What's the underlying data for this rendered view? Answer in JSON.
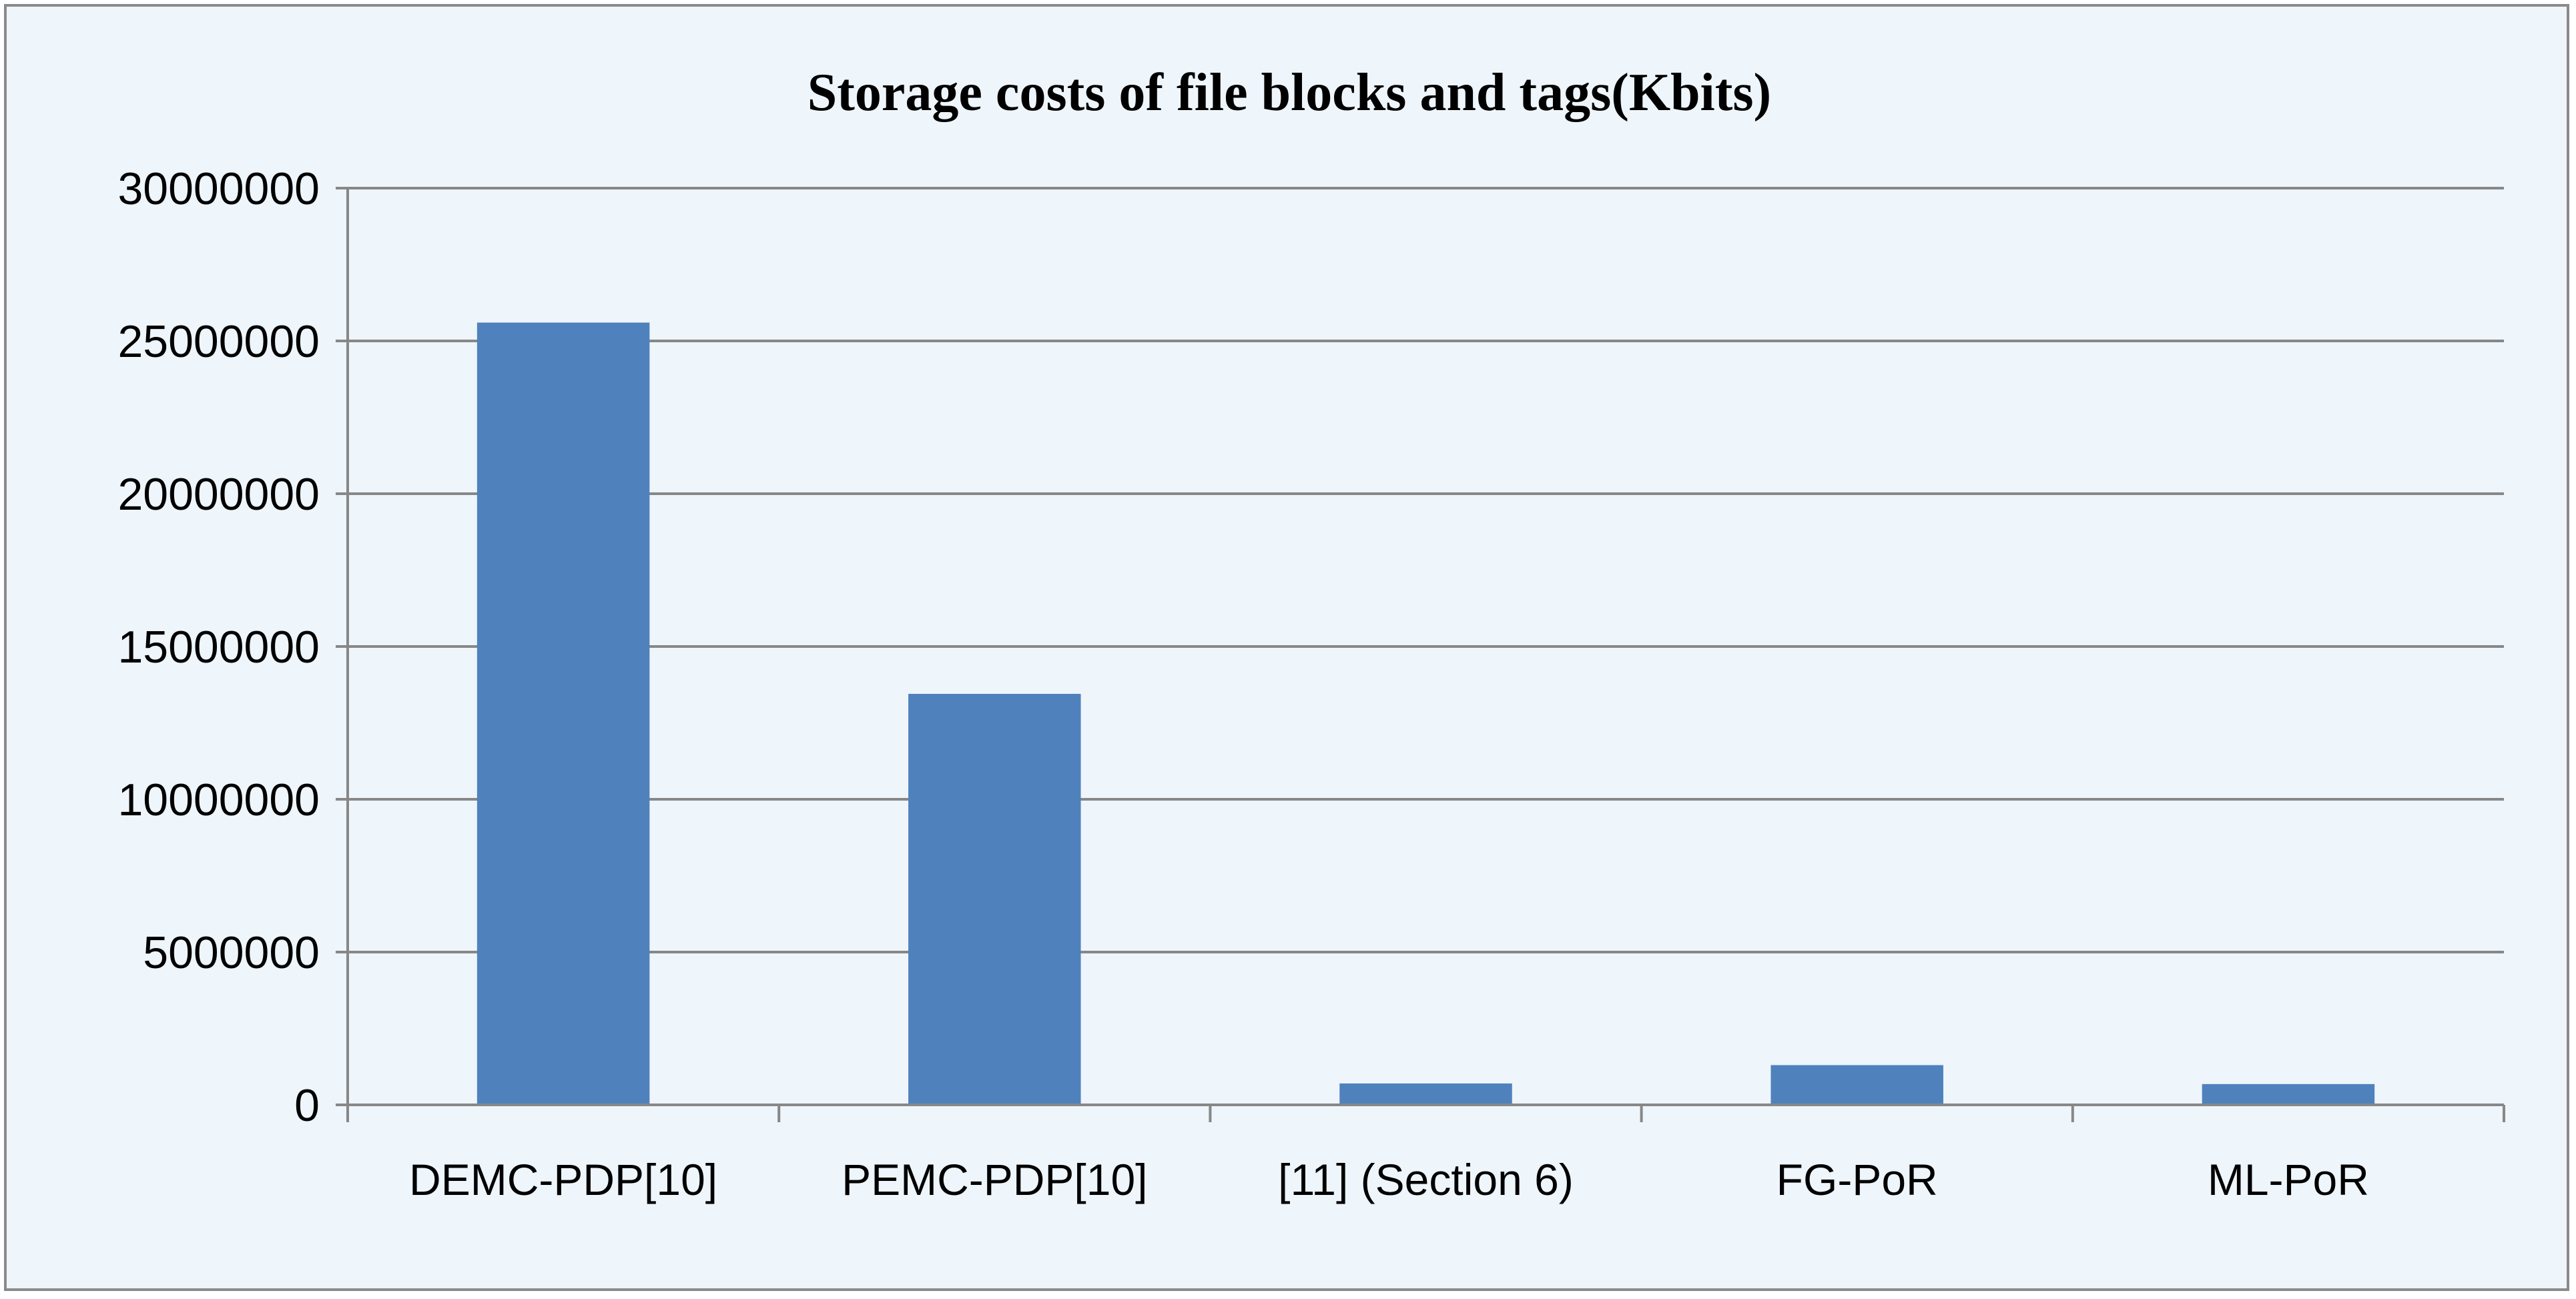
{
  "chart_data": {
    "type": "bar",
    "title": "Storage costs of file blocks and tags(Kbits)",
    "xlabel": "",
    "ylabel": "",
    "categories": [
      "DEMC-PDP[10]",
      "PEMC-PDP[10]",
      "[11] (Section 6)",
      "FG-PoR",
      "ML-PoR"
    ],
    "values": [
      25600000,
      13450000,
      700000,
      1300000,
      680000
    ],
    "ylim": [
      0,
      30000000
    ],
    "yticks": [
      0,
      5000000,
      10000000,
      15000000,
      20000000,
      25000000,
      30000000
    ],
    "ytick_labels": [
      "0",
      "5000000",
      "10000000",
      "15000000",
      "20000000",
      "25000000",
      "30000000"
    ],
    "grid": true,
    "legend": "none",
    "colors": {
      "bar": "#4f81bd",
      "background": "#eef5fb",
      "gridline": "#878787",
      "axis": "#878787"
    }
  }
}
